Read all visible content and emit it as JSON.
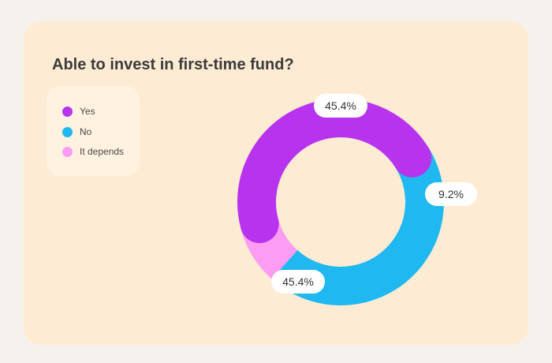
{
  "chart_data": {
    "type": "pie",
    "title": "Able to invest in first-time fund?",
    "categories": [
      "Yes",
      "No",
      "It depends"
    ],
    "values": [
      45.4,
      45.4,
      9.2
    ],
    "data_labels": [
      "45.4%",
      "45.4%",
      "9.2%"
    ],
    "colors": [
      "#b833ee",
      "#1fb8f0",
      "#fc9cf2"
    ],
    "unit": "%",
    "donut": true,
    "legend_position": "top-left",
    "background_color": "#feebd4"
  },
  "legend": {
    "items": [
      {
        "label": "Yes",
        "color": "#b833ee"
      },
      {
        "label": "No",
        "color": "#1fb8f0"
      },
      {
        "label": "It depends",
        "color": "#fc9cf2"
      }
    ]
  }
}
